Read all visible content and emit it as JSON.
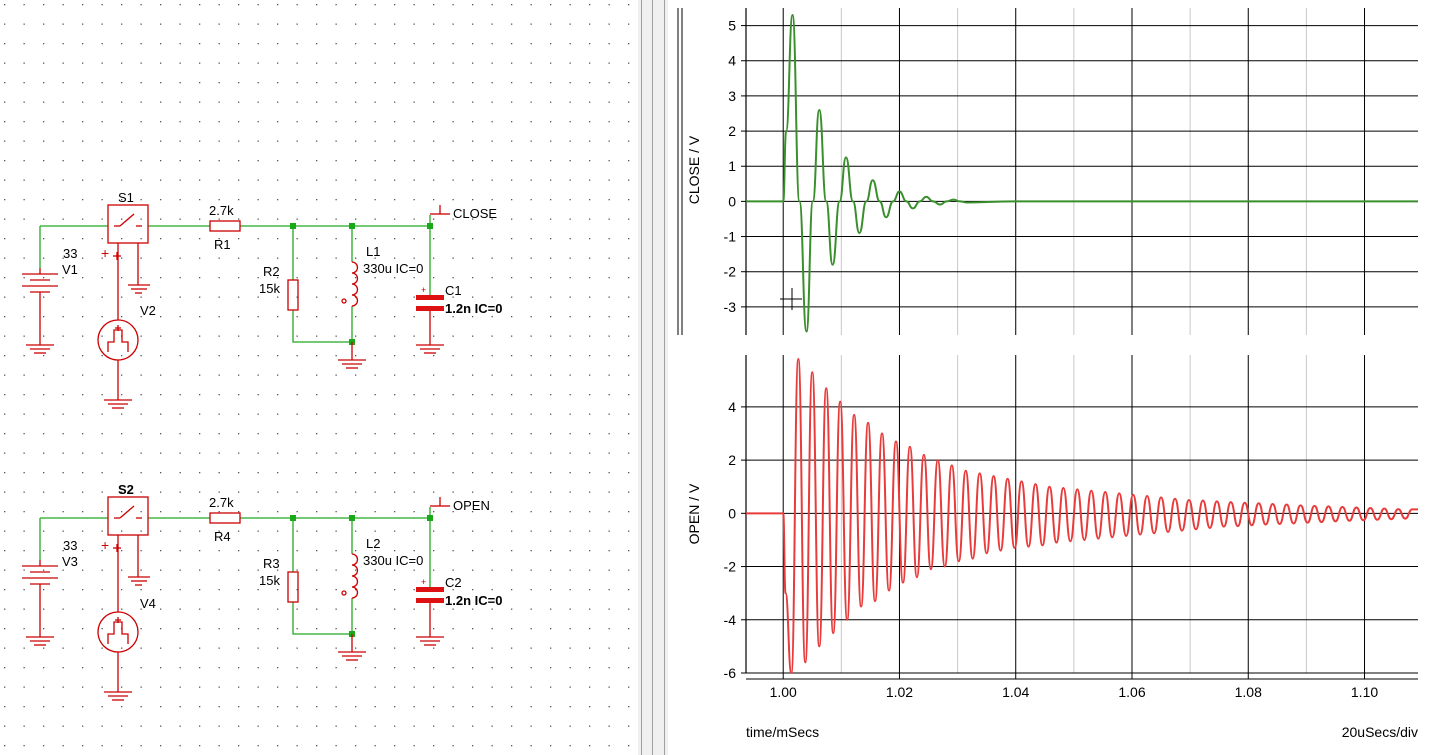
{
  "schematic": {
    "nets": [
      "CLOSE",
      "OPEN"
    ],
    "circuit_close": {
      "switch": "S1",
      "source_dc": {
        "value": "33",
        "ref": "V1"
      },
      "source_pulse": {
        "ref": "V2"
      },
      "series_resistor": {
        "value": "2.7k",
        "ref": "R1"
      },
      "shunt_resistor": {
        "ref": "R2",
        "value": "15k"
      },
      "inductor": {
        "ref": "L1",
        "value": "330u IC=0"
      },
      "capacitor": {
        "ref": "C1",
        "value": "1.2n IC=0"
      },
      "probe": "CLOSE"
    },
    "circuit_open": {
      "switch": "S2",
      "source_dc": {
        "value": "33",
        "ref": "V3"
      },
      "source_pulse": {
        "ref": "V4"
      },
      "series_resistor": {
        "value": "2.7k",
        "ref": "R4"
      },
      "shunt_resistor": {
        "ref": "R3",
        "value": "15k"
      },
      "inductor": {
        "ref": "L2",
        "value": "330u IC=0"
      },
      "capacitor": {
        "ref": "C2",
        "value": "1.2n IC=0"
      },
      "probe": "OPEN"
    }
  },
  "colors": {
    "schematic_symbol": "#cc0000",
    "wire": "#22aa22",
    "close_trace": "#3a8f2d",
    "open_trace": "#e83c3c",
    "grid_major": "#000000",
    "grid_minor": "#c8c8c8"
  },
  "chart_data": [
    {
      "type": "line",
      "ylabel": "CLOSE / V",
      "ylim": [
        -3.8,
        5.5
      ],
      "yticks": [
        "5",
        "4",
        "3",
        "2",
        "1",
        "0",
        "-1",
        "-2",
        "-3"
      ],
      "xlim": [
        0.9936,
        1.1092
      ],
      "grid": true,
      "series": [
        {
          "name": "CLOSE",
          "x": [
            0.9936,
            1.0,
            1.0005,
            1.0016,
            1.0028,
            1.004,
            1.0051,
            1.0062,
            1.0074,
            1.0085,
            1.0097,
            1.0108,
            1.012,
            1.0131,
            1.0143,
            1.0154,
            1.0166,
            1.0177,
            1.0189,
            1.02,
            1.0212,
            1.0223,
            1.0235,
            1.0246,
            1.0258,
            1.027,
            1.0281,
            1.0293,
            1.0304,
            1.0316,
            1.04,
            1.1092
          ],
          "y": [
            0,
            0,
            2.0,
            5.3,
            0.0,
            -3.7,
            0.0,
            2.6,
            0.0,
            -1.8,
            0.0,
            1.25,
            0.0,
            -0.9,
            0.0,
            0.6,
            0.0,
            -0.45,
            0.0,
            0.28,
            0.0,
            -0.2,
            0.0,
            0.13,
            0.0,
            -0.09,
            0.0,
            0.05,
            0.0,
            -0.03,
            0.0,
            0.0
          ]
        }
      ]
    },
    {
      "type": "line",
      "ylabel": "OPEN / V",
      "xlabel": "time/mSecs",
      "xticks": [
        "1.00",
        "1.02",
        "1.04",
        "1.06",
        "1.08",
        "1.10"
      ],
      "ylim": [
        -6.0,
        5.95
      ],
      "yticks": [
        "4",
        "2",
        "0",
        "-2",
        "-4",
        "-6"
      ],
      "xlim": [
        0.9936,
        1.1092
      ],
      "grid": true,
      "scale_note": "20uSecs/div",
      "series": [
        {
          "name": "OPEN",
          "x": [
            0.9936,
            1.0,
            1.0004,
            1.0014,
            1.0026,
            1.0038,
            1.005,
            1.0062,
            1.0074,
            1.0086,
            1.0098,
            1.011,
            1.0122,
            1.0134,
            1.0146,
            1.0158,
            1.017,
            1.0182,
            1.0194,
            1.0206,
            1.0218,
            1.023,
            1.0242,
            1.0254,
            1.0266,
            1.0278,
            1.029,
            1.0302,
            1.0314,
            1.0326,
            1.0338,
            1.035,
            1.0362,
            1.0374,
            1.0386,
            1.0398,
            1.041,
            1.0422,
            1.0434,
            1.0446,
            1.0458,
            1.047,
            1.0482,
            1.0494,
            1.0506,
            1.0518,
            1.053,
            1.0542,
            1.0554,
            1.0566,
            1.0578,
            1.059,
            1.0602,
            1.0614,
            1.0626,
            1.0638,
            1.065,
            1.0662,
            1.0674,
            1.0686,
            1.0698,
            1.071,
            1.0722,
            1.0734,
            1.0746,
            1.0758,
            1.077,
            1.0782,
            1.0794,
            1.0806,
            1.0818,
            1.083,
            1.0842,
            1.0854,
            1.0866,
            1.0878,
            1.089,
            1.0902,
            1.0914,
            1.0926,
            1.0938,
            1.095,
            1.0962,
            1.0974,
            1.0986,
            1.0998,
            1.101,
            1.1022,
            1.1034,
            1.1046,
            1.1058,
            1.107,
            1.1082,
            1.1092
          ],
          "y": [
            0,
            0,
            -3.0,
            -6.0,
            5.8,
            -5.6,
            5.3,
            -5.0,
            4.7,
            -4.5,
            4.2,
            -4.0,
            3.7,
            -3.5,
            3.4,
            -3.3,
            3.0,
            -2.9,
            2.7,
            -2.6,
            2.5,
            -2.4,
            2.2,
            -2.1,
            2.0,
            -2.0,
            1.8,
            -1.8,
            1.6,
            -1.7,
            1.5,
            -1.5,
            1.4,
            -1.4,
            1.3,
            -1.3,
            1.2,
            -1.25,
            1.1,
            -1.2,
            1.0,
            -1.1,
            0.95,
            -1.05,
            0.9,
            -1.0,
            0.85,
            -0.95,
            0.8,
            -0.9,
            0.75,
            -0.85,
            0.7,
            -0.8,
            0.65,
            -0.75,
            0.6,
            -0.7,
            0.55,
            -0.65,
            0.5,
            -0.6,
            0.48,
            -0.55,
            0.45,
            -0.5,
            0.42,
            -0.48,
            0.4,
            -0.45,
            0.38,
            -0.42,
            0.35,
            -0.4,
            0.33,
            -0.38,
            0.3,
            -0.35,
            0.28,
            -0.33,
            0.26,
            -0.3,
            0.24,
            -0.28,
            0.22,
            -0.26,
            0.2,
            -0.24,
            0.18,
            -0.22,
            0.16,
            -0.2,
            0.15,
            0.15
          ]
        }
      ]
    }
  ]
}
